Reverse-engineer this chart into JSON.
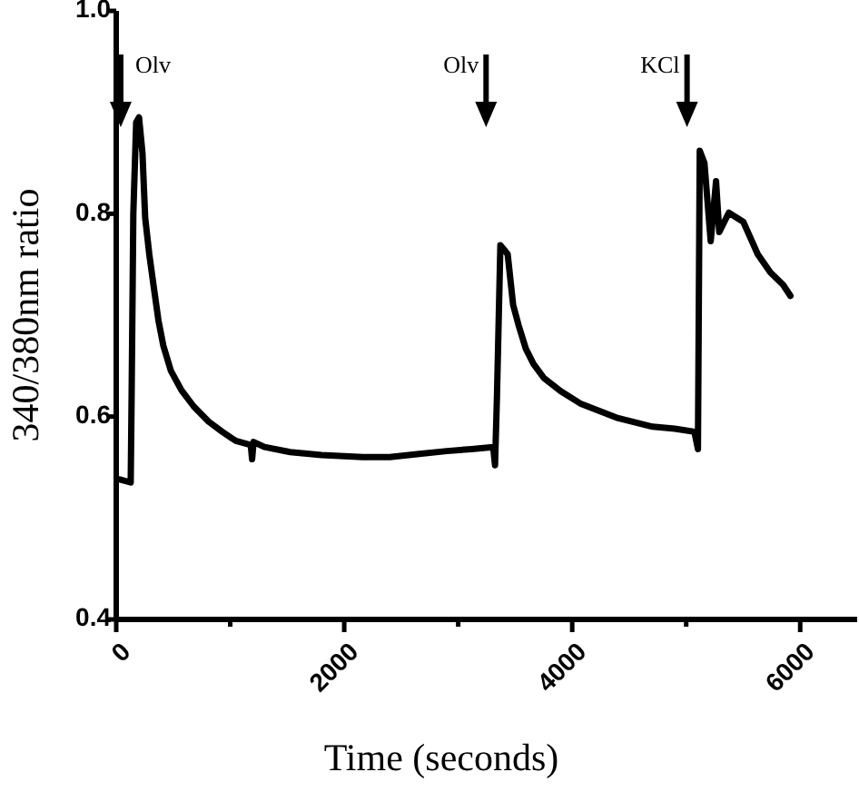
{
  "chart_data": {
    "type": "line",
    "xlabel": "Time (seconds)",
    "ylabel": "340/380nm ratio",
    "xlim": [
      0,
      6500
    ],
    "xticks": [
      0,
      {
        "value": 1000,
        "label": null
      },
      2000,
      {
        "value": 3000,
        "label": null
      },
      4000,
      {
        "value": 5000,
        "label": null
      },
      6000
    ],
    "ylim": [
      0.4,
      1.0
    ],
    "yticks": [
      0.4,
      0.6,
      0.8,
      {
        "value": 1,
        "label": "1.0"
      }
    ],
    "grid": false,
    "marker": "none",
    "line_style": "solid",
    "series": [
      {
        "color": "#000000",
        "x": [
          32,
          127,
          135,
          150,
          175,
          200,
          230,
          254,
          290,
          334,
          370,
          413,
          480,
          572,
          680,
          811,
          930,
          1049,
          1150,
          1180,
          1192,
          1205,
          1300,
          1526,
          1800,
          2162,
          2400,
          2640,
          2900,
          3116,
          3307,
          3323,
          3340,
          3370,
          3400,
          3434,
          3482,
          3530,
          3593,
          3660,
          3752,
          3900,
          4070,
          4388,
          4706,
          4900,
          5072,
          5103,
          5119,
          5160,
          5215,
          5262,
          5290,
          5374,
          5501,
          5628,
          5739,
          5850,
          5914
        ],
        "values": [
          0.538,
          0.535,
          0.62,
          0.8,
          0.89,
          0.895,
          0.86,
          0.796,
          0.76,
          0.724,
          0.695,
          0.67,
          0.645,
          0.626,
          0.61,
          0.595,
          0.585,
          0.576,
          0.573,
          0.572,
          0.558,
          0.575,
          0.57,
          0.565,
          0.562,
          0.56,
          0.56,
          0.563,
          0.566,
          0.568,
          0.57,
          0.552,
          0.62,
          0.769,
          0.765,
          0.76,
          0.71,
          0.69,
          0.667,
          0.652,
          0.638,
          0.625,
          0.613,
          0.599,
          0.59,
          0.588,
          0.585,
          0.568,
          0.862,
          0.85,
          0.773,
          0.832,
          0.782,
          0.801,
          0.792,
          0.76,
          0.742,
          0.73,
          0.719
        ]
      }
    ],
    "annotations": [
      "Olv",
      "Olv",
      "KCl"
    ]
  }
}
